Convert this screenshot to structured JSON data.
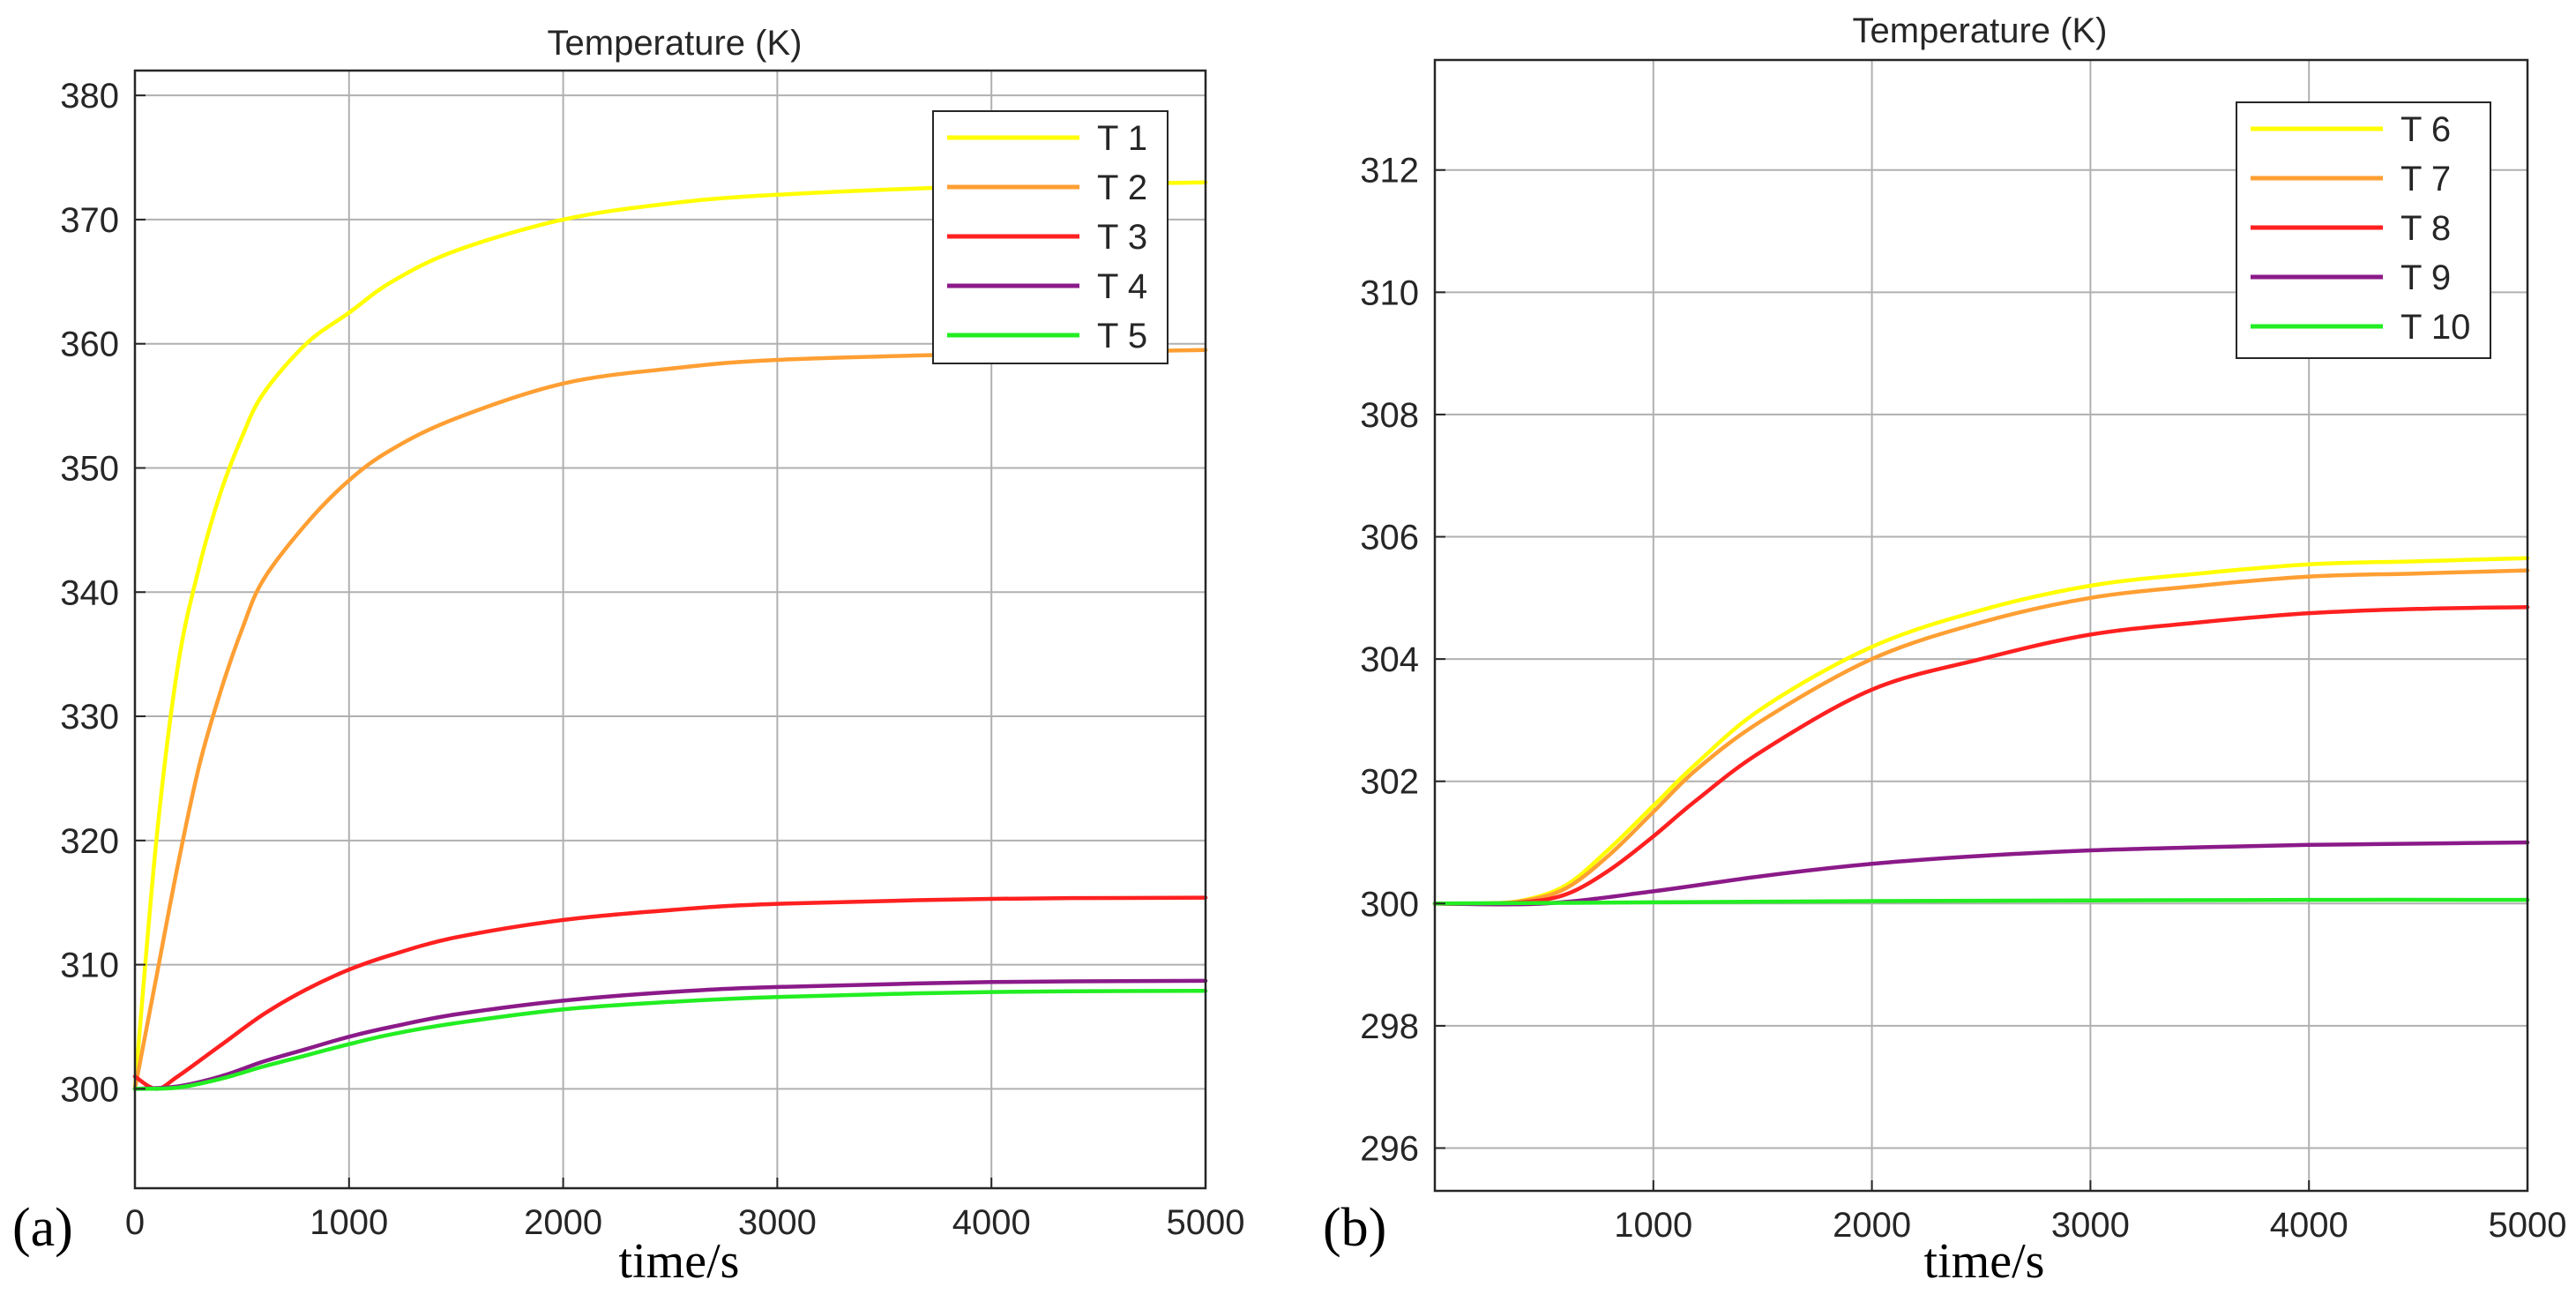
{
  "chart_data": [
    {
      "type": "line",
      "panel_label": "(a)",
      "title": "Temperature (K)",
      "xlabel": "time/s",
      "ylabel": "",
      "xlim": [
        0,
        5000
      ],
      "ylim": [
        292,
        382
      ],
      "xticks": [
        0,
        1000,
        2000,
        3000,
        4000,
        5000
      ],
      "yticks": [
        300,
        310,
        320,
        330,
        340,
        350,
        360,
        370,
        380
      ],
      "grid": true,
      "legend_position": "top-right",
      "series": [
        {
          "name": "T 1",
          "color": "#ffff00",
          "x": [
            0,
            100,
            200,
            300,
            400,
            500,
            600,
            800,
            1000,
            1200,
            1500,
            2000,
            2500,
            3000,
            4000,
            5000
          ],
          "y": [
            300,
            320,
            334,
            342,
            348,
            352.5,
            356,
            360,
            362.5,
            365,
            367.5,
            370,
            371.3,
            372,
            372.7,
            373
          ]
        },
        {
          "name": "T 2",
          "color": "#ff9f33",
          "x": [
            0,
            100,
            200,
            300,
            400,
            500,
            600,
            800,
            1000,
            1200,
            1500,
            2000,
            2500,
            3000,
            4000,
            5000
          ],
          "y": [
            300,
            309,
            318,
            326,
            332,
            337,
            341,
            345.5,
            349,
            351.5,
            354,
            356.8,
            358,
            358.7,
            359.2,
            359.5
          ]
        },
        {
          "name": "T 3",
          "color": "#ff2020",
          "x": [
            0,
            100,
            200,
            400,
            600,
            800,
            1000,
            1200,
            1500,
            2000,
            2500,
            3000,
            4000,
            5000
          ],
          "y": [
            301,
            300,
            301,
            303.5,
            306,
            308,
            309.6,
            310.8,
            312.2,
            313.6,
            314.4,
            314.9,
            315.3,
            315.4
          ]
        },
        {
          "name": "T 4",
          "color": "#8b1a89",
          "x": [
            0,
            200,
            400,
            600,
            800,
            1000,
            1200,
            1500,
            2000,
            2500,
            3000,
            4000,
            5000
          ],
          "y": [
            300,
            300.2,
            301,
            302.2,
            303.2,
            304.2,
            305,
            306,
            307.1,
            307.8,
            308.2,
            308.6,
            308.7
          ]
        },
        {
          "name": "T 5",
          "color": "#22ee22",
          "x": [
            0,
            200,
            400,
            600,
            800,
            1000,
            1200,
            1500,
            2000,
            2500,
            3000,
            4000,
            5000
          ],
          "y": [
            300,
            300.1,
            300.8,
            301.8,
            302.7,
            303.6,
            304.4,
            305.3,
            306.4,
            307,
            307.4,
            307.8,
            307.9
          ]
        }
      ]
    },
    {
      "type": "line",
      "panel_label": "(b)",
      "title": "Temperature (K)",
      "xlabel": "time/s",
      "ylabel": "",
      "xlim": [
        0,
        5000
      ],
      "ylim": [
        295.3,
        313.8
      ],
      "xticks": [
        1000,
        2000,
        3000,
        4000,
        5000
      ],
      "yticks": [
        296,
        298,
        300,
        302,
        304,
        306,
        308,
        310,
        312
      ],
      "grid": true,
      "legend_position": "top-right",
      "series": [
        {
          "name": "T 6",
          "color": "#ffff00",
          "x": [
            0,
            200,
            400,
            600,
            800,
            1000,
            1200,
            1500,
            2000,
            2500,
            3000,
            3500,
            4000,
            4500,
            5000
          ],
          "y": [
            300,
            300,
            300.05,
            300.3,
            300.9,
            301.6,
            302.3,
            303.2,
            304.2,
            304.8,
            305.2,
            305.4,
            305.55,
            305.6,
            305.65
          ]
        },
        {
          "name": "T 7",
          "color": "#ff9f33",
          "x": [
            0,
            200,
            400,
            600,
            800,
            1000,
            1200,
            1500,
            2000,
            2500,
            3000,
            3500,
            4000,
            4500,
            5000
          ],
          "y": [
            300,
            300,
            300.04,
            300.25,
            300.8,
            301.5,
            302.2,
            303.0,
            304.0,
            304.6,
            305.0,
            305.2,
            305.35,
            305.4,
            305.45
          ]
        },
        {
          "name": "T 8",
          "color": "#ff2020",
          "x": [
            0,
            200,
            400,
            600,
            800,
            1000,
            1200,
            1500,
            2000,
            2500,
            3000,
            3500,
            4000,
            4500,
            5000
          ],
          "y": [
            300,
            300,
            300.02,
            300.15,
            300.55,
            301.1,
            301.7,
            302.5,
            303.5,
            304.0,
            304.4,
            304.6,
            304.75,
            304.82,
            304.85
          ]
        },
        {
          "name": "T 9",
          "color": "#8b1a89",
          "x": [
            0,
            500,
            1000,
            1500,
            2000,
            2500,
            3000,
            3500,
            4000,
            4500,
            5000
          ],
          "y": [
            300,
            300,
            300.2,
            300.45,
            300.65,
            300.78,
            300.87,
            300.92,
            300.96,
            300.98,
            301.0
          ]
        },
        {
          "name": "T 10",
          "color": "#22ee22",
          "x": [
            0,
            1000,
            2000,
            3000,
            4000,
            5000
          ],
          "y": [
            300,
            300.02,
            300.04,
            300.05,
            300.06,
            300.06
          ]
        }
      ]
    }
  ]
}
